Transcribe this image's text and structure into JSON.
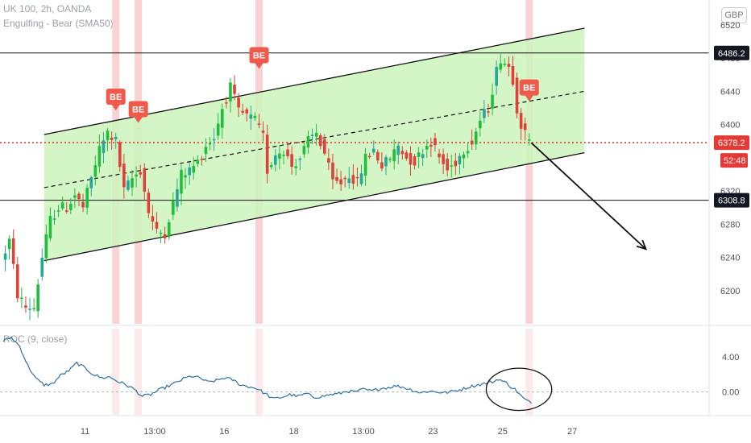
{
  "header": {
    "symbol": "UK 100, 2h, OANDA",
    "indicator": "Engulfing - Bear (SMA50)",
    "currency": "GBP"
  },
  "roc": {
    "label": "ROC (9, close)"
  },
  "colors": {
    "up": "#26a69a",
    "up_bright": "#1fbf3c",
    "down": "#e0403a",
    "channel_fill": "#ccf5bc",
    "channel_line": "#111111",
    "highlight": "#f7c4c4",
    "badge": "#ef5a4c",
    "price_line": "#e53935",
    "roc_line": "#2f6f9a"
  },
  "chart_data": [
    {
      "type": "candlestick",
      "title": "UK 100, 2h, OANDA",
      "ylim": [
        6160,
        6550
      ],
      "x_ticks": [
        {
          "label": "11",
          "x": 20
        },
        {
          "label": "13:00",
          "x": 37
        },
        {
          "label": "16",
          "x": 54
        },
        {
          "label": "18",
          "x": 71
        },
        {
          "label": "13:00",
          "x": 88
        },
        {
          "label": "23",
          "x": 105
        },
        {
          "label": "25",
          "x": 122
        },
        {
          "label": "27",
          "x": 139
        }
      ],
      "y_ticks": [
        6200,
        6240,
        6280,
        6320,
        6360,
        6400,
        6440,
        6480,
        6520
      ],
      "price_labels": [
        {
          "value": 6486.2,
          "text": "6486.2",
          "style": "dark"
        },
        {
          "value": 6378.2,
          "text": "6378.2",
          "style": "red"
        },
        {
          "value": 6308.8,
          "text": "6308.8",
          "style": "dark"
        }
      ],
      "countdown": "52:48",
      "horizontal_lines": [
        6486.2,
        6308.8
      ],
      "current_price": 6378.2,
      "channel": {
        "upper": [
          [
            10,
            6388
          ],
          [
            142,
            6516
          ]
        ],
        "middle": [
          [
            10,
            6324
          ],
          [
            142,
            6440
          ]
        ],
        "lower": [
          [
            10,
            6236
          ],
          [
            142,
            6366
          ]
        ]
      },
      "arrow": [
        [
          129,
          6378
        ],
        [
          157,
          6250
        ]
      ],
      "signals": [
        {
          "label": "BE",
          "x": 27.5,
          "value": 6420
        },
        {
          "label": "BE",
          "x": 33,
          "value": 6405
        },
        {
          "label": "BE",
          "x": 62.5,
          "value": 6470
        },
        {
          "label": "BE",
          "x": 128.5,
          "value": 6431
        }
      ],
      "highlight_x": [
        27.5,
        33,
        62.5,
        128.5
      ],
      "anchors": [
        [
          0,
          6235
        ],
        [
          2,
          6260
        ],
        [
          4,
          6195
        ],
        [
          6,
          6180
        ],
        [
          8,
          6180
        ],
        [
          10,
          6240
        ],
        [
          12,
          6285
        ],
        [
          14,
          6300
        ],
        [
          16,
          6300
        ],
        [
          18,
          6315
        ],
        [
          20,
          6300
        ],
        [
          22,
          6335
        ],
        [
          24,
          6370
        ],
        [
          26,
          6390
        ],
        [
          28,
          6380
        ],
        [
          30,
          6320
        ],
        [
          32,
          6335
        ],
        [
          34,
          6345
        ],
        [
          36,
          6295
        ],
        [
          38,
          6270
        ],
        [
          40,
          6270
        ],
        [
          42,
          6305
        ],
        [
          44,
          6340
        ],
        [
          46,
          6345
        ],
        [
          48,
          6355
        ],
        [
          50,
          6375
        ],
        [
          52,
          6385
        ],
        [
          54,
          6420
        ],
        [
          56,
          6445
        ],
        [
          58,
          6415
        ],
        [
          60,
          6410
        ],
        [
          62,
          6405
        ],
        [
          64,
          6385
        ],
        [
          65,
          6345
        ],
        [
          67,
          6365
        ],
        [
          69,
          6370
        ],
        [
          71,
          6350
        ],
        [
          73,
          6360
        ],
        [
          75,
          6380
        ],
        [
          77,
          6390
        ],
        [
          79,
          6365
        ],
        [
          81,
          6330
        ],
        [
          83,
          6330
        ],
        [
          85,
          6340
        ],
        [
          87,
          6330
        ],
        [
          89,
          6360
        ],
        [
          91,
          6370
        ],
        [
          93,
          6350
        ],
        [
          95,
          6360
        ],
        [
          97,
          6375
        ],
        [
          99,
          6360
        ],
        [
          101,
          6355
        ],
        [
          103,
          6370
        ],
        [
          105,
          6380
        ],
        [
          107,
          6360
        ],
        [
          109,
          6345
        ],
        [
          111,
          6355
        ],
        [
          113,
          6370
        ],
        [
          115,
          6380
        ],
        [
          117,
          6405
        ],
        [
          119,
          6420
        ],
        [
          121,
          6465
        ],
        [
          122,
          6480
        ],
        [
          124,
          6470
        ],
        [
          125,
          6455
        ],
        [
          126,
          6420
        ],
        [
          127,
          6400
        ],
        [
          128,
          6388
        ],
        [
          129,
          6378.2
        ]
      ],
      "roc": {
        "ylim": [
          -2.6,
          7.2
        ],
        "y_ticks": [
          4.0,
          0.0
        ],
        "baseline": 0,
        "anchors": [
          [
            0,
            5.8
          ],
          [
            2,
            6.2
          ],
          [
            4,
            5.2
          ],
          [
            6,
            3.0
          ],
          [
            8,
            1.5
          ],
          [
            10,
            0.8
          ],
          [
            12,
            0.9
          ],
          [
            14,
            1.9
          ],
          [
            16,
            2.4
          ],
          [
            18,
            3.3
          ],
          [
            20,
            2.7
          ],
          [
            22,
            2.0
          ],
          [
            24,
            1.6
          ],
          [
            26,
            1.7
          ],
          [
            28,
            1.2
          ],
          [
            30,
            0.8
          ],
          [
            32,
            0.3
          ],
          [
            34,
            -0.5
          ],
          [
            36,
            -0.3
          ],
          [
            38,
            0.2
          ],
          [
            40,
            0.6
          ],
          [
            42,
            1.0
          ],
          [
            44,
            1.5
          ],
          [
            46,
            1.8
          ],
          [
            48,
            1.6
          ],
          [
            50,
            1.1
          ],
          [
            52,
            1.3
          ],
          [
            54,
            1.6
          ],
          [
            56,
            1.4
          ],
          [
            58,
            0.8
          ],
          [
            60,
            0.6
          ],
          [
            62,
            0.4
          ],
          [
            64,
            -0.2
          ],
          [
            66,
            -0.8
          ],
          [
            68,
            -0.6
          ],
          [
            70,
            -0.3
          ],
          [
            72,
            -0.5
          ],
          [
            74,
            -0.2
          ],
          [
            76,
            -0.6
          ],
          [
            78,
            -0.5
          ],
          [
            80,
            -0.3
          ],
          [
            82,
            -0.2
          ],
          [
            84,
            0.1
          ],
          [
            86,
            0.0
          ],
          [
            88,
            0.3
          ],
          [
            90,
            0.1
          ],
          [
            92,
            0.4
          ],
          [
            94,
            0.5
          ],
          [
            96,
            0.7
          ],
          [
            98,
            0.5
          ],
          [
            100,
            0.2
          ],
          [
            102,
            -0.1
          ],
          [
            104,
            0.1
          ],
          [
            106,
            0.0
          ],
          [
            108,
            -0.1
          ],
          [
            110,
            0.1
          ],
          [
            112,
            0.3
          ],
          [
            114,
            0.6
          ],
          [
            116,
            0.8
          ],
          [
            118,
            1.0
          ],
          [
            120,
            1.2
          ],
          [
            121,
            1.5
          ],
          [
            122,
            1.2
          ],
          [
            123,
            1.0
          ],
          [
            124,
            0.6
          ],
          [
            125,
            0.3
          ],
          [
            126,
            -0.2
          ],
          [
            127,
            -0.7
          ],
          [
            128,
            -1.0
          ],
          [
            129,
            -1.3
          ]
        ],
        "circle": {
          "cx": 126,
          "cy": 0.3,
          "rx": 5,
          "ry": 2.4
        }
      }
    }
  ]
}
